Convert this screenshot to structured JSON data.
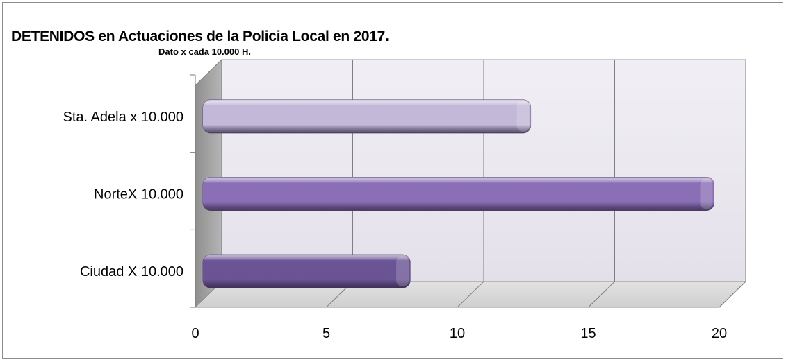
{
  "chart_data": {
    "type": "bar",
    "orientation": "horizontal",
    "title": "DETENIDOS en Actuaciones de la Policia Local en 2017",
    "title_suffix": ".",
    "subtitle": "Dato x cada 10.000 H.",
    "categories": [
      "Ciudad X 10.000",
      "NorteX 10.000",
      "Sta. Adela x 10.000"
    ],
    "values": [
      8.2,
      19.8,
      12.8
    ],
    "xlim": [
      0,
      20
    ],
    "xticks": [
      "0",
      "5",
      "10",
      "15",
      "20"
    ],
    "grid": true,
    "legend": "none",
    "colors": {
      "Ciudad X 10.000": "#6b5493",
      "NorteX 10.000": "#8b6fb6",
      "Sta. Adela x 10.000": "#c3b8d8",
      "back_wall": "#ece9f1",
      "floor": "#d6d6d6",
      "side_wall": "#a8a8a8",
      "gridline": "#7f7f7f"
    }
  }
}
